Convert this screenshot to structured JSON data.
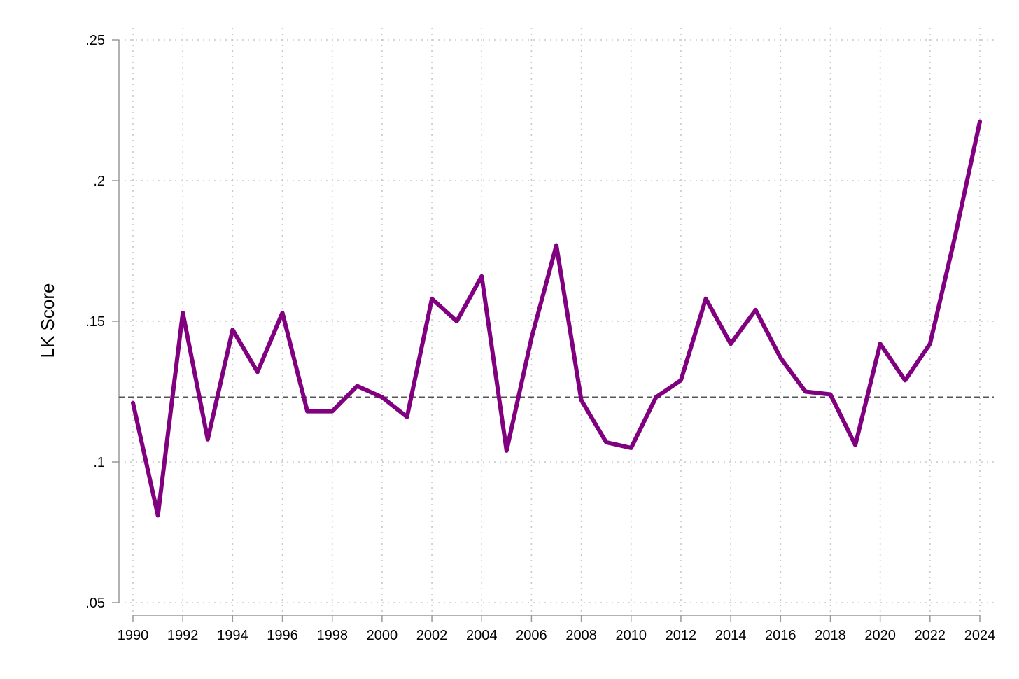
{
  "chart_data": {
    "type": "line",
    "title": "",
    "xlabel": "",
    "ylabel": "LK Score",
    "xlim": [
      1990,
      2024
    ],
    "ylim": [
      0.05,
      0.25
    ],
    "y_ticks": [
      {
        "value": 0.05,
        "label": ".05"
      },
      {
        "value": 0.1,
        "label": ".1"
      },
      {
        "value": 0.15,
        "label": ".15"
      },
      {
        "value": 0.2,
        "label": ".2"
      },
      {
        "value": 0.25,
        "label": ".25"
      }
    ],
    "x_tick_labels": [
      "1990",
      "1992",
      "1994",
      "1996",
      "1998",
      "2000",
      "2002",
      "2004",
      "2006",
      "2008",
      "2010",
      "2012",
      "2014",
      "2016",
      "2018",
      "2020",
      "2022",
      "2024"
    ],
    "grid": "dotted, both axes",
    "series": [
      {
        "x": [
          1990,
          1991,
          1992,
          1993,
          1994,
          1995,
          1996,
          1997,
          1998,
          1999,
          2000,
          2001,
          2002,
          2003,
          2004,
          2005,
          2006,
          2007,
          2008,
          2009,
          2010,
          2011,
          2012,
          2013,
          2014,
          2015,
          2016,
          2017,
          2018,
          2019,
          2020,
          2021,
          2022,
          2023,
          2024
        ],
        "values": [
          0.121,
          0.081,
          0.153,
          0.108,
          0.147,
          0.132,
          0.153,
          0.118,
          0.118,
          0.127,
          0.123,
          0.116,
          0.158,
          0.15,
          0.166,
          0.104,
          0.144,
          0.177,
          0.122,
          0.107,
          0.105,
          0.123,
          0.129,
          0.158,
          0.142,
          0.154,
          0.137,
          0.125,
          0.124,
          0.106,
          0.142,
          0.129,
          0.142,
          0.18,
          0.221
        ]
      }
    ],
    "reference_line": {
      "y": 0.123,
      "style": "dashed"
    },
    "colors": {
      "series": "#800080",
      "reference": "#555555",
      "grid": "#c8c8c8",
      "axis": "#999999"
    }
  }
}
